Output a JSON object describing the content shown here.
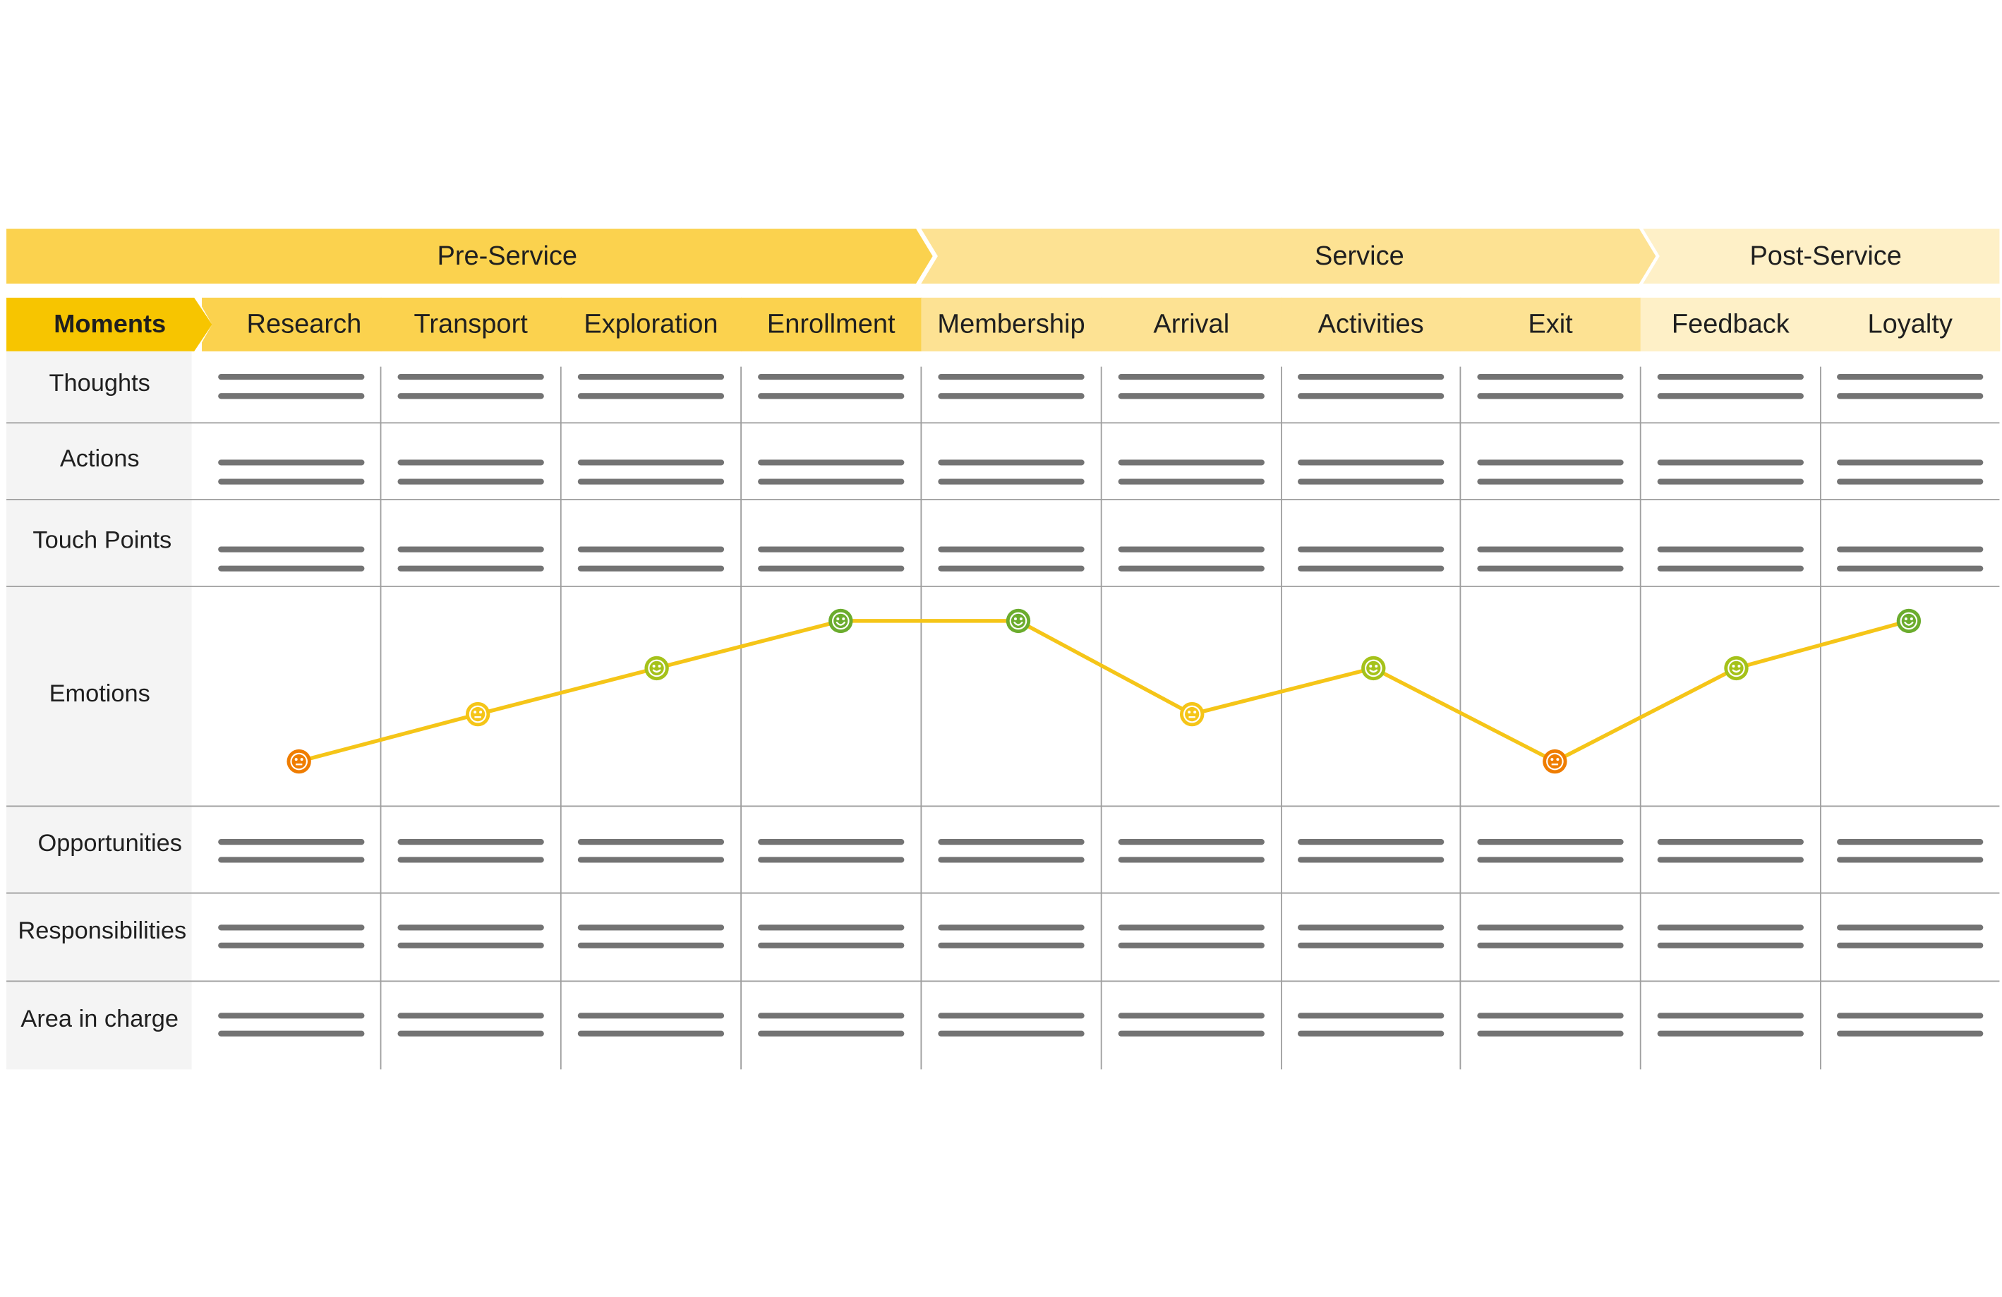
{
  "phases": [
    {
      "label": "Pre-Service",
      "color": "#fbd24e"
    },
    {
      "label": "Service",
      "color": "#fde293"
    },
    {
      "label": "Post-Service",
      "color": "#fef0c7"
    }
  ],
  "moments_label": "Moments",
  "moments_label_color": "#f7c500",
  "moments": [
    {
      "label": "Research",
      "phase": 0
    },
    {
      "label": "Transport",
      "phase": 0
    },
    {
      "label": "Exploration",
      "phase": 0
    },
    {
      "label": "Enrollment",
      "phase": 0
    },
    {
      "label": "Membership",
      "phase": 1
    },
    {
      "label": "Arrival",
      "phase": 1
    },
    {
      "label": "Activities",
      "phase": 1
    },
    {
      "label": "Exit",
      "phase": 1
    },
    {
      "label": "Feedback",
      "phase": 2
    },
    {
      "label": "Loyalty",
      "phase": 2
    }
  ],
  "row_labels": {
    "thoughts": "Thoughts",
    "actions": "Actions",
    "touch_points": "Touch Points",
    "emotions": "Emotions",
    "opportunities": "Opportunities",
    "responsibilities": "Responsibilities",
    "area_in_charge": "Area in charge"
  },
  "emotions": [
    {
      "moment": "Research",
      "level": 1,
      "mood": "sad"
    },
    {
      "moment": "Transport",
      "level": 2,
      "mood": "neutral"
    },
    {
      "moment": "Exploration",
      "level": 3,
      "mood": "happy"
    },
    {
      "moment": "Enrollment",
      "level": 4,
      "mood": "very-happy"
    },
    {
      "moment": "Membership",
      "level": 4,
      "mood": "very-happy"
    },
    {
      "moment": "Arrival",
      "level": 2,
      "mood": "neutral"
    },
    {
      "moment": "Activities",
      "level": 3,
      "mood": "happy"
    },
    {
      "moment": "Exit",
      "level": 1,
      "mood": "sad"
    },
    {
      "moment": "Feedback",
      "level": 3,
      "mood": "happy"
    },
    {
      "moment": "Loyalty",
      "level": 4,
      "mood": "very-happy"
    }
  ],
  "colors": {
    "line": "#f5c518",
    "placeholder": "#737373",
    "grid": "#9e9e9e",
    "label_bg": "#f4f4f4",
    "sad": "#ef7d00",
    "neutral": "#f5c518",
    "happy": "#a5c21a",
    "very-happy": "#6bac2d"
  }
}
